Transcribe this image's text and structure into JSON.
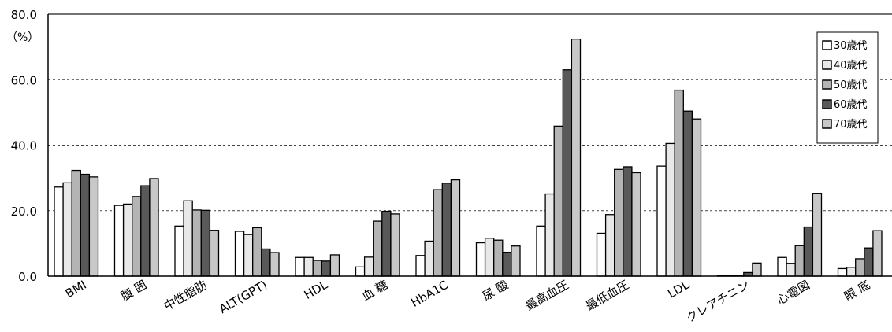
{
  "chart_data": {
    "type": "bar",
    "unit": "（%）",
    "ylim": [
      0,
      80
    ],
    "yticks": [
      "0.0",
      "20.0",
      "40.0",
      "60.0",
      "80.0"
    ],
    "grid": true,
    "legend_position": "top-right",
    "categories": [
      "BMI",
      "腹 囲",
      "中性脂肪",
      "ALT(GPT)",
      "HDL",
      "血 糖",
      "HbA1C",
      "尿 酸",
      "最高血圧",
      "最低血圧",
      "LDL",
      "クレアチニン",
      "心電図",
      "眼 底"
    ],
    "series": [
      {
        "name": "30歳代",
        "color": "#ffffff",
        "values": [
          27.2,
          21.6,
          15.3,
          13.7,
          5.7,
          2.8,
          6.3,
          10.2,
          15.3,
          13.1,
          33.6,
          0.0,
          5.7,
          2.3
        ]
      },
      {
        "name": "40歳代",
        "color": "#e8e8e8",
        "values": [
          28.5,
          22.0,
          23.0,
          12.7,
          5.7,
          5.8,
          10.7,
          11.6,
          25.1,
          18.8,
          40.5,
          0.3,
          3.9,
          2.7
        ]
      },
      {
        "name": "50歳代",
        "color": "#b4b4b4",
        "values": [
          32.3,
          24.3,
          20.2,
          14.8,
          4.8,
          16.8,
          26.4,
          11.0,
          45.8,
          32.6,
          56.8,
          0.2,
          9.3,
          5.3
        ]
      },
      {
        "name": "60歳代",
        "color": "#595959",
        "values": [
          31.1,
          27.6,
          20.1,
          8.3,
          4.6,
          19.8,
          28.4,
          7.3,
          63.0,
          33.4,
          50.4,
          1.1,
          15.0,
          8.6
        ]
      },
      {
        "name": "70歳代",
        "color": "#c8c8c8",
        "values": [
          30.3,
          29.8,
          14.0,
          7.2,
          6.5,
          19.0,
          29.4,
          9.2,
          72.4,
          31.6,
          48.0,
          4.0,
          25.3,
          13.9
        ]
      }
    ]
  }
}
